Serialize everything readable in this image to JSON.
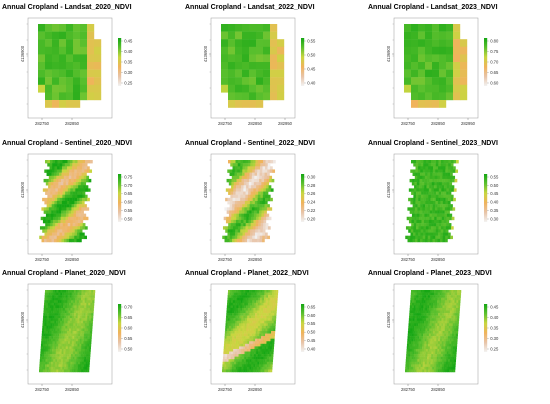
{
  "palette": {
    "low": "#f2f2f2",
    "mid_low": "#e8c4a8",
    "mid": "#f0b35c",
    "mid_high": "#c9d640",
    "high_mid": "#5cc02e",
    "high": "#14a614"
  },
  "chart_data": [
    {
      "type": "heatmap",
      "id": "landsat_2020",
      "title": "Annual Cropland - Landsat_2020_NDVI",
      "style": "blocky",
      "shape": "landsat",
      "seed": 11,
      "x_ticks": [
        "282750",
        "282850"
      ],
      "y_ticks": [
        "4136900"
      ],
      "legend_ticks": [
        "0.45",
        "0.40",
        "0.35",
        "0.30",
        "0.25"
      ],
      "range": [
        0.23,
        0.46
      ]
    },
    {
      "type": "heatmap",
      "id": "landsat_2022",
      "title": "Annual Cropland - Landsat_2022_NDVI",
      "style": "blocky",
      "shape": "landsat",
      "seed": 23,
      "x_ticks": [
        "282750",
        "282850",
        "282950"
      ],
      "y_ticks": [
        "4136900"
      ],
      "legend_ticks": [
        "0.55",
        "0.50",
        "0.45",
        "0.40"
      ],
      "range": [
        0.38,
        0.57
      ]
    },
    {
      "type": "heatmap",
      "id": "landsat_2023",
      "title": "Annual Cropland - Landsat_2023_NDVI",
      "style": "blocky",
      "shape": "landsat",
      "seed": 37,
      "x_ticks": [
        "282750",
        "282850",
        "282950"
      ],
      "y_ticks": [
        "4136900"
      ],
      "legend_ticks": [
        "0.80",
        "0.75",
        "0.70",
        "0.65",
        "0.60"
      ],
      "range": [
        0.58,
        0.82
      ]
    },
    {
      "type": "heatmap",
      "id": "sentinel_2020",
      "title": "Annual Cropland - Sentinel_2020_NDVI",
      "style": "stripes",
      "shape": "tilted",
      "seed": 41,
      "x_ticks": [
        "282750",
        "282850"
      ],
      "y_ticks": [
        "4136900"
      ],
      "legend_ticks": [
        "0.75",
        "0.70",
        "0.65",
        "0.60",
        "0.55",
        "0.50"
      ],
      "range": [
        0.48,
        0.77
      ]
    },
    {
      "type": "heatmap",
      "id": "sentinel_2022",
      "title": "Annual Cropland - Sentinel_2022_NDVI",
      "style": "stripes_dry",
      "shape": "tilted",
      "seed": 53,
      "x_ticks": [
        "282750",
        "282850"
      ],
      "y_ticks": [
        "4136900"
      ],
      "legend_ticks": [
        "0.30",
        "0.28",
        "0.26",
        "0.24",
        "0.22",
        "0.20"
      ],
      "range": [
        0.19,
        0.31
      ]
    },
    {
      "type": "heatmap",
      "id": "sentinel_2023",
      "title": "Annual Cropland - Sentinel_2023_NDVI",
      "style": "uniform",
      "shape": "tilted",
      "seed": 67,
      "x_ticks": [
        "282750",
        "282850"
      ],
      "y_ticks": [
        "4136900"
      ],
      "legend_ticks": [
        "0.55",
        "0.50",
        "0.45",
        "0.40",
        "0.35",
        "0.30"
      ],
      "range": [
        0.28,
        0.57
      ]
    },
    {
      "type": "heatmap",
      "id": "planet_2020",
      "title": "Annual Cropland - Planet_2020_NDVI",
      "style": "smooth",
      "shape": "tilted_smooth",
      "seed": 71,
      "x_ticks": [
        "282750",
        "282850"
      ],
      "y_ticks": [
        "4136900"
      ],
      "legend_ticks": [
        "0.70",
        "0.65",
        "0.60",
        "0.55",
        "0.50"
      ],
      "range": [
        0.48,
        0.72
      ]
    },
    {
      "type": "heatmap",
      "id": "planet_2022",
      "title": "Annual Cropland - Planet_2022_NDVI",
      "style": "smooth_streak",
      "shape": "tilted_smooth",
      "seed": 83,
      "x_ticks": [
        "282750",
        "282850"
      ],
      "y_ticks": [
        "4136900"
      ],
      "legend_ticks": [
        "0.65",
        "0.60",
        "0.55",
        "0.50",
        "0.45",
        "0.40"
      ],
      "range": [
        0.38,
        0.67
      ]
    },
    {
      "type": "heatmap",
      "id": "planet_2023",
      "title": "Annual Cropland - Planet_2023_NDVI",
      "style": "smooth",
      "shape": "tilted_smooth",
      "seed": 97,
      "x_ticks": [
        "282750",
        "282850"
      ],
      "y_ticks": [
        "4136900"
      ],
      "legend_ticks": [
        "0.45",
        "0.40",
        "0.35",
        "0.30",
        "0.25"
      ],
      "range": [
        0.23,
        0.47
      ]
    }
  ]
}
